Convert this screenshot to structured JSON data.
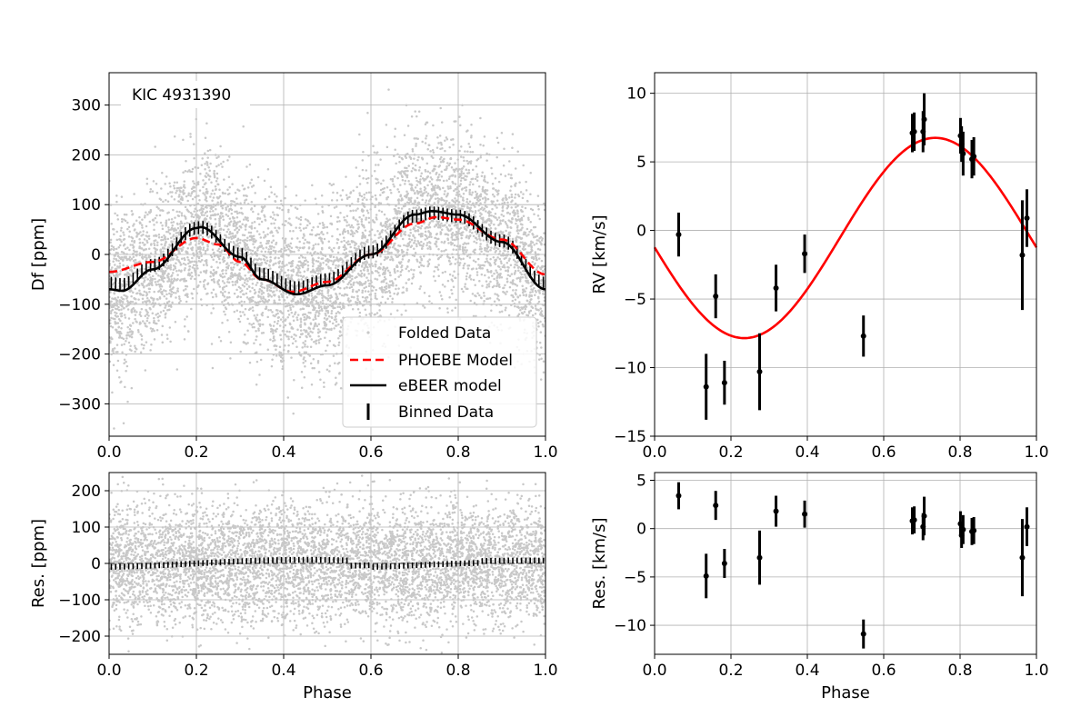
{
  "chart_data": [
    {
      "id": "lc",
      "type": "scatter",
      "title": "",
      "xlabel": "",
      "ylabel": "Df [ppm]",
      "xlim": [
        0.0,
        1.0
      ],
      "ylim": [
        -365,
        365
      ],
      "xticks": [
        0.0,
        0.2,
        0.4,
        0.6,
        0.8,
        1.0
      ],
      "xticklabels": [
        "0.0",
        "0.2",
        "0.4",
        "0.6",
        "0.8",
        "1.0"
      ],
      "yticks": [
        -300,
        -200,
        -100,
        0,
        100,
        200,
        300
      ],
      "yticklabels": [
        "−300",
        "−200",
        "−100",
        "0",
        "100",
        "200",
        "300"
      ],
      "grid": true,
      "annotation": "KIC 4931390",
      "legend": {
        "position": "lower-right",
        "entries": [
          {
            "label": "Folded Data",
            "color": "#c8c8c8",
            "style": "dot"
          },
          {
            "label": "PHOEBE Model",
            "color": "#ff0000",
            "style": "dashed"
          },
          {
            "label": "eBEER model",
            "color": "#000000",
            "style": "solid"
          },
          {
            "label": "Binned Data",
            "color": "#000000",
            "style": "errorbar"
          }
        ]
      },
      "series": [
        {
          "name": "Folded Data",
          "kind": "scatter-cloud",
          "color": "#c8c8c8",
          "spread_ppm": 80
        },
        {
          "name": "PHOEBE Model",
          "kind": "line",
          "color": "#ff0000",
          "x": [
            0.0,
            0.1,
            0.2,
            0.25,
            0.3,
            0.35,
            0.42,
            0.5,
            0.6,
            0.7,
            0.75,
            0.8,
            0.9,
            1.0
          ],
          "y": [
            -35,
            -15,
            33,
            20,
            -15,
            -50,
            -75,
            -55,
            0,
            62,
            75,
            70,
            30,
            -40
          ]
        },
        {
          "name": "eBEER model",
          "kind": "line",
          "color": "#000000",
          "x": [
            0.0,
            0.03,
            0.1,
            0.2,
            0.21,
            0.3,
            0.35,
            0.43,
            0.5,
            0.6,
            0.7,
            0.74,
            0.8,
            0.9,
            1.0
          ],
          "y": [
            -70,
            -73,
            -30,
            53,
            55,
            -5,
            -50,
            -80,
            -62,
            0,
            80,
            87,
            80,
            25,
            -70
          ]
        },
        {
          "name": "Binned Data",
          "kind": "errorbar",
          "color": "#000000",
          "n_bins": 100,
          "yerr": 13,
          "offset": 10
        }
      ]
    },
    {
      "id": "rv",
      "type": "scatter",
      "title": "",
      "xlabel": "",
      "ylabel": "RV [km/s]",
      "xlim": [
        0.0,
        1.0
      ],
      "ylim": [
        -15,
        11.5
      ],
      "xticks": [
        0.0,
        0.2,
        0.4,
        0.6,
        0.8,
        1.0
      ],
      "xticklabels": [
        "0.0",
        "0.2",
        "0.4",
        "0.6",
        "0.8",
        "1.0"
      ],
      "yticks": [
        -15,
        -10,
        -5,
        0,
        5,
        10
      ],
      "yticklabels": [
        "−15",
        "−10",
        "−5",
        "0",
        "5",
        "10"
      ],
      "grid": true,
      "model": {
        "name": "RV model",
        "color": "#ff0000",
        "K": 7.3,
        "gamma": -0.55,
        "phase_max": 0.735
      },
      "points": {
        "x": [
          0.063,
          0.135,
          0.16,
          0.183,
          0.275,
          0.318,
          0.393,
          0.547,
          0.675,
          0.68,
          0.703,
          0.706,
          0.801,
          0.804,
          0.808,
          0.831,
          0.836,
          0.963,
          0.975
        ],
        "y": [
          -0.3,
          -11.4,
          -4.8,
          -11.1,
          -10.3,
          -4.2,
          -1.7,
          -7.7,
          7.1,
          7.2,
          7.2,
          8.1,
          6.9,
          6.3,
          5.6,
          5.2,
          5.4,
          -1.8,
          0.9
        ],
        "yerr": [
          1.6,
          2.4,
          1.6,
          1.6,
          2.8,
          1.7,
          1.4,
          1.5,
          1.4,
          1.4,
          1.5,
          1.9,
          1.3,
          1.3,
          1.6,
          1.4,
          1.4,
          4.0,
          2.1
        ]
      }
    },
    {
      "id": "lc_res",
      "type": "scatter",
      "title": "",
      "xlabel": "Phase",
      "ylabel": "Res. [ppm]",
      "xlim": [
        0.0,
        1.0
      ],
      "ylim": [
        -250,
        250
      ],
      "xticks": [
        0.0,
        0.2,
        0.4,
        0.6,
        0.8,
        1.0
      ],
      "xticklabels": [
        "0.0",
        "0.2",
        "0.4",
        "0.6",
        "0.8",
        "1.0"
      ],
      "yticks": [
        -200,
        -100,
        0,
        100,
        200
      ],
      "yticklabels": [
        "−200",
        "−100",
        "0",
        "100",
        "200"
      ],
      "grid": true,
      "zero_line": true,
      "series": [
        {
          "name": "Folded Data residuals",
          "kind": "scatter-cloud",
          "color": "#c8c8c8",
          "spread_ppm": 80
        },
        {
          "name": "Binned residuals",
          "kind": "errorbar",
          "color": "#000000",
          "n_bins": 100,
          "yerr": 8
        }
      ]
    },
    {
      "id": "rv_res",
      "type": "scatter",
      "title": "",
      "xlabel": "Phase",
      "ylabel": "Res. [km/s]",
      "xlim": [
        0.0,
        1.0
      ],
      "ylim": [
        -13,
        5.8
      ],
      "xticks": [
        0.0,
        0.2,
        0.4,
        0.6,
        0.8,
        1.0
      ],
      "xticklabels": [
        "0.0",
        "0.2",
        "0.4",
        "0.6",
        "0.8",
        "1.0"
      ],
      "yticks": [
        -10,
        -5,
        0,
        5
      ],
      "yticklabels": [
        "−10",
        "−5",
        "0",
        "5"
      ],
      "grid": true,
      "points": {
        "x": [
          0.063,
          0.135,
          0.16,
          0.183,
          0.275,
          0.318,
          0.393,
          0.547,
          0.675,
          0.68,
          0.703,
          0.706,
          0.801,
          0.804,
          0.808,
          0.831,
          0.836,
          0.963,
          0.975
        ],
        "y": [
          3.4,
          -4.9,
          2.4,
          -3.6,
          -3.0,
          1.8,
          1.5,
          -10.9,
          0.8,
          0.9,
          0.2,
          1.3,
          0.5,
          -0.7,
          -0.1,
          -0.3,
          -0.2,
          -3.0,
          0.2
        ],
        "yerr": [
          1.4,
          2.3,
          1.5,
          1.5,
          2.8,
          1.6,
          1.4,
          1.5,
          1.4,
          1.4,
          1.4,
          2.0,
          1.3,
          1.3,
          1.5,
          1.4,
          1.4,
          4.0,
          2.0
        ]
      }
    }
  ]
}
